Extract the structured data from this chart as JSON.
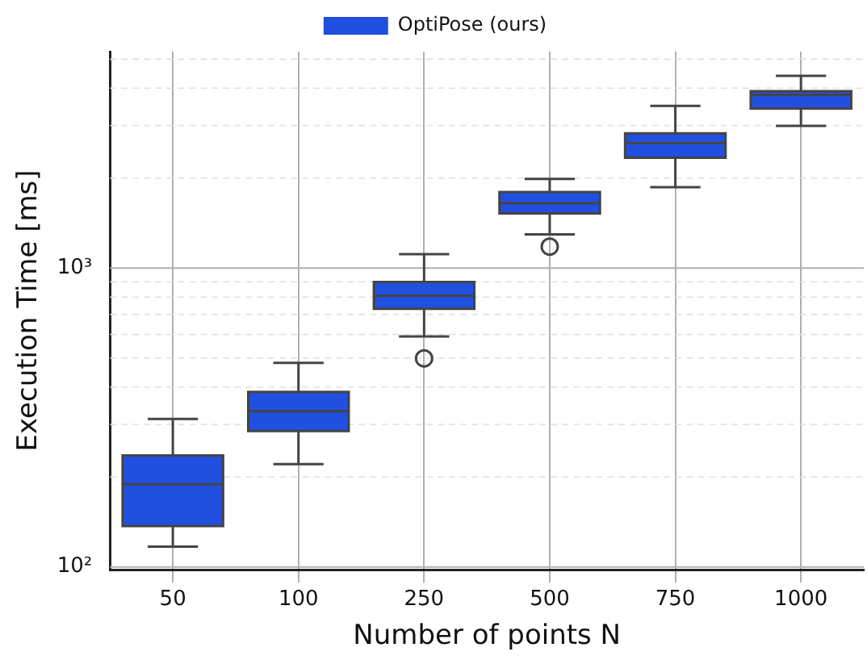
{
  "chart_data": {
    "type": "box",
    "xlabel": "Number of points N",
    "ylabel": "Execution Time [ms]",
    "categories": [
      "50",
      "100",
      "250",
      "500",
      "750",
      "1000"
    ],
    "log": true,
    "grid": true,
    "legend": "top",
    "ylim": [
      98,
      5300
    ],
    "yticks": [
      {
        "value": 100,
        "label": "10²"
      },
      {
        "value": 200,
        "label": null
      },
      {
        "value": 300,
        "label": null
      },
      {
        "value": 400,
        "label": null
      },
      {
        "value": 500,
        "label": null
      },
      {
        "value": 600,
        "label": null
      },
      {
        "value": 700,
        "label": null
      },
      {
        "value": 800,
        "label": null
      },
      {
        "value": 900,
        "label": null
      },
      {
        "value": 1000,
        "label": "10³"
      },
      {
        "value": 2000,
        "label": null
      },
      {
        "value": 3000,
        "label": null
      },
      {
        "value": 4000,
        "label": null
      },
      {
        "value": 5000,
        "label": null
      }
    ],
    "series": [
      {
        "name": "OptiPose (ours)",
        "color": "#2150e0",
        "boxes": [
          {
            "low": 117,
            "q1": 137,
            "median": 189,
            "q3": 236,
            "high": 313
          },
          {
            "low": 221,
            "q1": 285,
            "median": 332,
            "q3": 385,
            "high": 482
          },
          {
            "low": 591,
            "q1": 731,
            "median": 809,
            "q3": 898,
            "high": 1114,
            "outliers": [
              499
            ]
          },
          {
            "low": 1297,
            "q1": 1524,
            "median": 1648,
            "q3": 1798,
            "high": 1987,
            "outliers": [
              1180
            ]
          },
          {
            "low": 1864,
            "q1": 2342,
            "median": 2623,
            "q3": 2825,
            "high": 3490
          },
          {
            "low": 2990,
            "q1": 3420,
            "median": 3793,
            "q3": 3910,
            "high": 4395
          }
        ]
      }
    ]
  }
}
